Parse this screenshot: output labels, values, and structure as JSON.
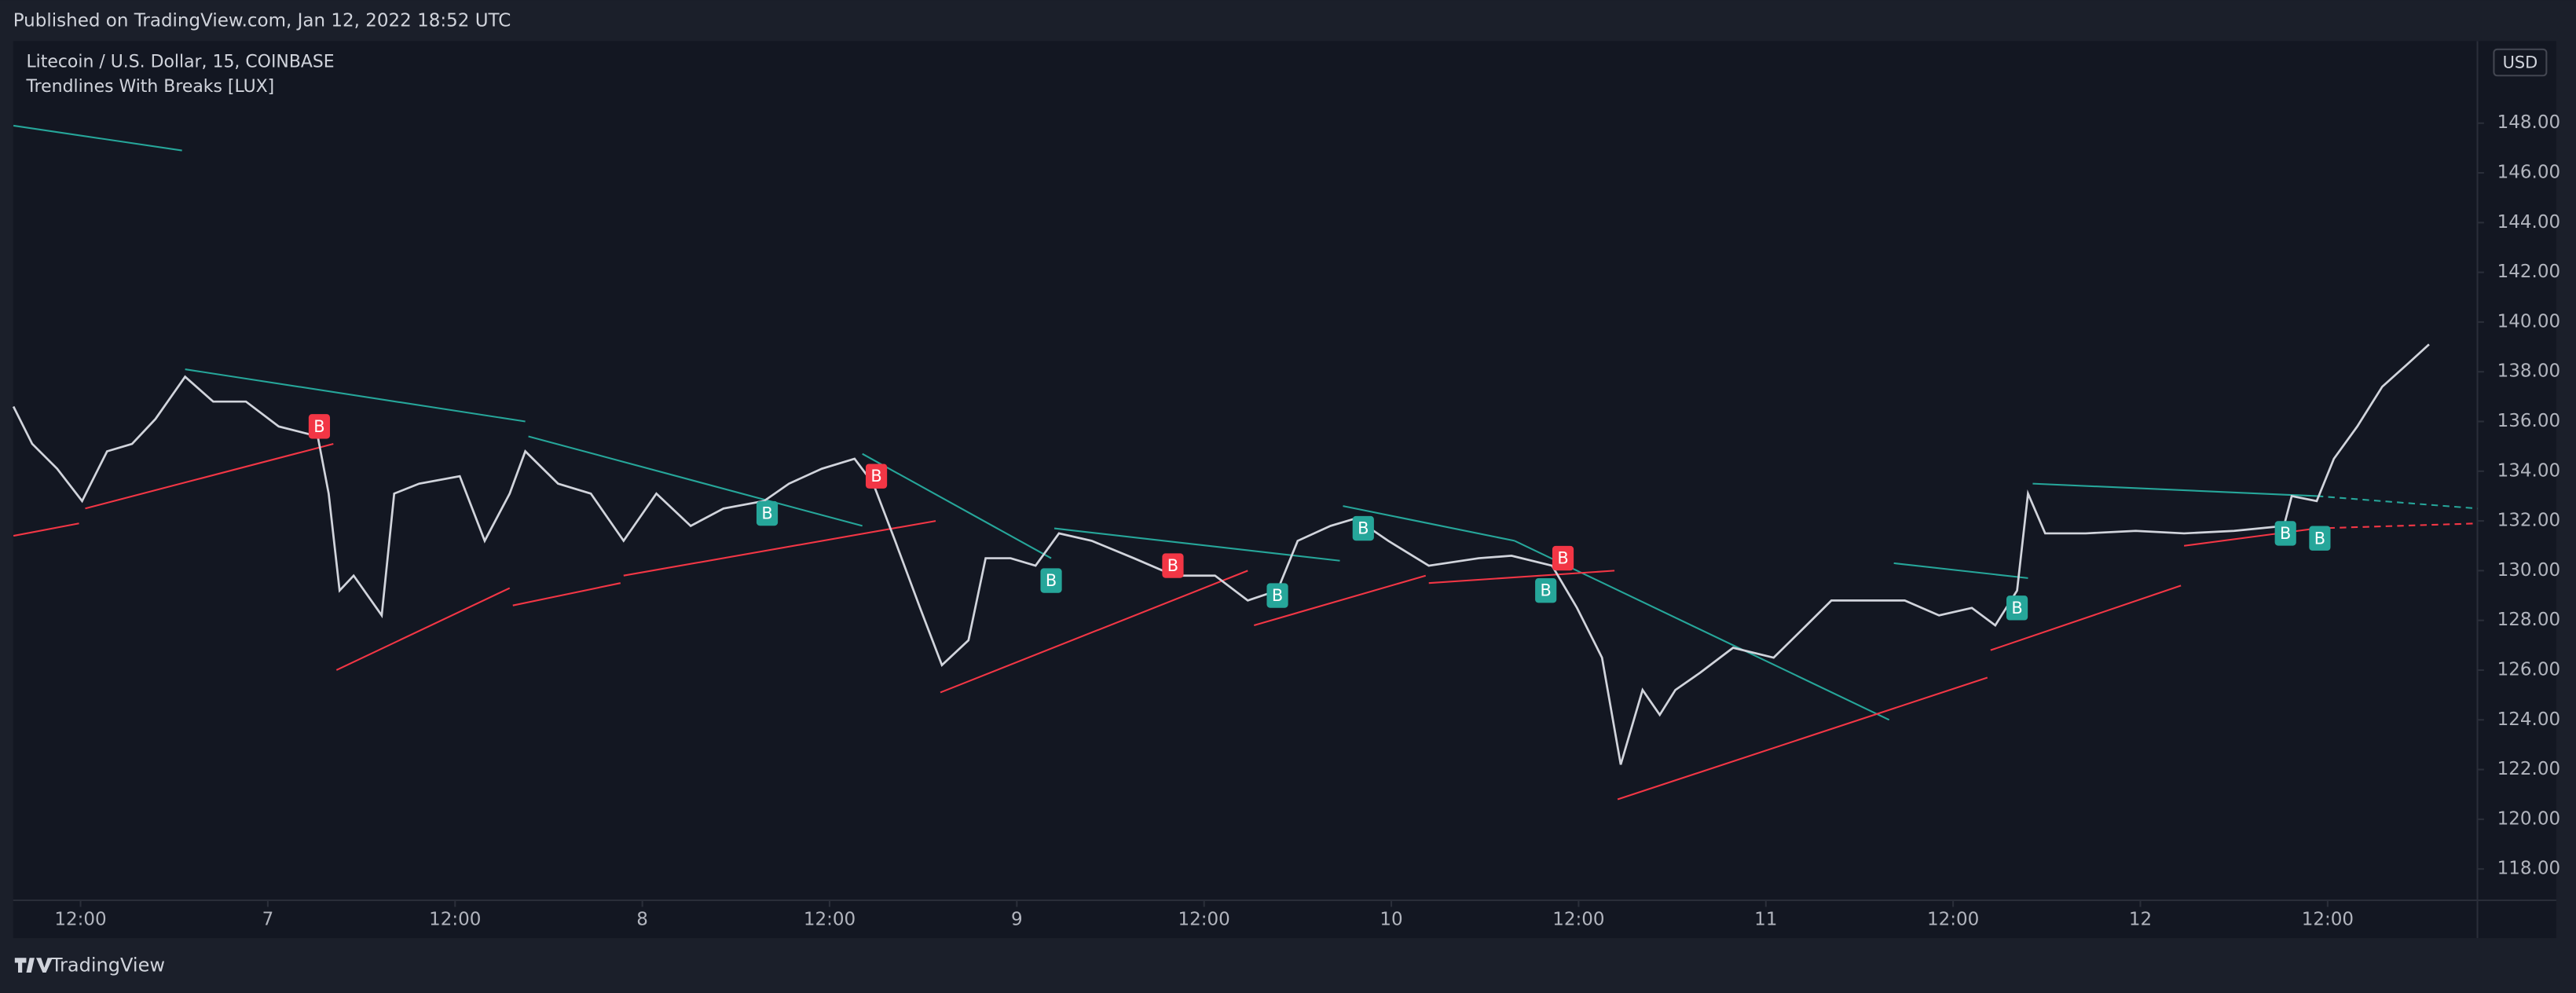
{
  "header": "Published on TradingView.com, Jan 12, 2022 18:52 UTC",
  "footer": "TradingView",
  "chart_data": {
    "type": "line",
    "title": "Litecoin / U.S. Dollar, 15, COINBASE",
    "subtitle": "Trendlines With Breaks [LUX]",
    "currency": "USD",
    "color": "#d1d4dc",
    "xlim": [
      7.68,
      165.6
    ],
    "xticks": [
      {
        "value": 12,
        "label": "12:00"
      },
      {
        "value": 24,
        "label": "7"
      },
      {
        "value": 36,
        "label": "12:00"
      },
      {
        "value": 48,
        "label": "8"
      },
      {
        "value": 60,
        "label": "12:00"
      },
      {
        "value": 72,
        "label": "9"
      },
      {
        "value": 84,
        "label": "12:00"
      },
      {
        "value": 96,
        "label": "10"
      },
      {
        "value": 108,
        "label": "12:00"
      },
      {
        "value": 120,
        "label": "11"
      },
      {
        "value": 132,
        "label": "12:00"
      },
      {
        "value": 144,
        "label": "12"
      },
      {
        "value": 156,
        "label": "12:00"
      }
    ],
    "ylim": [
      116.74,
      151.3
    ],
    "yticks": [
      {
        "value": 118,
        "label": "118.00"
      },
      {
        "value": 120,
        "label": "120.00"
      },
      {
        "value": 122,
        "label": "122.00"
      },
      {
        "value": 124,
        "label": "124.00"
      },
      {
        "value": 126,
        "label": "126.00"
      },
      {
        "value": 128,
        "label": "128.00"
      },
      {
        "value": 130,
        "label": "130.00"
      },
      {
        "value": 132,
        "label": "132.00"
      },
      {
        "value": 134,
        "label": "134.00"
      },
      {
        "value": 136,
        "label": "136.00"
      },
      {
        "value": 138,
        "label": "138.00"
      },
      {
        "value": 140,
        "label": "140.00"
      },
      {
        "value": 142,
        "label": "142.00"
      },
      {
        "value": 144,
        "label": "144.00"
      },
      {
        "value": 146,
        "label": "146.00"
      },
      {
        "value": 148,
        "label": "148.00"
      }
    ],
    "x": [
      7.7,
      8.9,
      10.5,
      12.1,
      13.7,
      15.3,
      16.8,
      18.7,
      20.5,
      22.6,
      24.7,
      27.2,
      27.9,
      28.6,
      29.5,
      31.3,
      32.1,
      33.7,
      36.3,
      37.9,
      39.5,
      40.5,
      42.6,
      44.7,
      46.8,
      48.9,
      51.1,
      53.2,
      55.8,
      57.4,
      59.5,
      61.6,
      62.8,
      64.2,
      65.8,
      67.2,
      68.9,
      70.0,
      71.6,
      73.2,
      74.7,
      76.8,
      79.5,
      82.1,
      84.7,
      86.8,
      88.7,
      90.0,
      92.1,
      93.7,
      95.8,
      98.4,
      101.6,
      103.7,
      106.3,
      107.9,
      109.5,
      110.7,
      112.1,
      113.2,
      114.2,
      115.8,
      117.9,
      120.5,
      122.6,
      124.2,
      126.8,
      128.9,
      131.1,
      133.2,
      134.7,
      136.1,
      136.8,
      137.9,
      140.5,
      143.7,
      146.8,
      150.0,
      153.2,
      153.7,
      155.3,
      156.4,
      157.9,
      159.5,
      161.1,
      162.5
    ],
    "values": [
      136.6,
      135.1,
      134.1,
      132.8,
      134.8,
      135.1,
      136.1,
      137.8,
      136.8,
      136.8,
      135.8,
      135.4,
      133.1,
      129.2,
      129.8,
      128.2,
      133.1,
      133.5,
      133.8,
      131.2,
      133.1,
      134.8,
      133.5,
      133.1,
      131.2,
      133.1,
      131.8,
      132.5,
      132.8,
      133.5,
      134.1,
      134.5,
      133.5,
      131.2,
      128.5,
      126.2,
      127.2,
      130.5,
      130.5,
      130.2,
      131.5,
      131.2,
      130.5,
      129.8,
      129.8,
      128.8,
      129.2,
      131.2,
      131.8,
      132.1,
      131.2,
      130.2,
      130.5,
      130.6,
      130.2,
      128.5,
      126.5,
      122.2,
      125.2,
      124.2,
      125.2,
      125.9,
      126.9,
      126.5,
      127.8,
      128.8,
      128.8,
      128.8,
      128.2,
      128.5,
      127.8,
      129.2,
      133.1,
      131.5,
      131.5,
      131.6,
      131.5,
      131.6,
      131.8,
      133.0,
      132.8,
      134.5,
      135.8,
      137.4,
      138.3,
      139.1
    ],
    "trendlines": [
      {
        "color": "#26a69a",
        "x1": 7.7,
        "y1": 147.9,
        "x2": 18.5,
        "y2": 146.9
      },
      {
        "color": "#26a69a",
        "x1": 18.7,
        "y1": 138.1,
        "x2": 40.5,
        "y2": 136.0
      },
      {
        "color": "#26a69a",
        "x1": 40.7,
        "y1": 135.4,
        "x2": 62.1,
        "y2": 131.8
      },
      {
        "color": "#26a69a",
        "x1": 62.1,
        "y1": 134.7,
        "x2": 74.2,
        "y2": 130.5
      },
      {
        "color": "#26a69a",
        "x1": 74.4,
        "y1": 131.7,
        "x2": 92.7,
        "y2": 130.4
      },
      {
        "color": "#26a69a",
        "x1": 92.9,
        "y1": 132.6,
        "x2": 103.9,
        "y2": 131.2
      },
      {
        "color": "#26a69a",
        "x1": 103.9,
        "y1": 131.2,
        "x2": 127.9,
        "y2": 124.0
      },
      {
        "color": "#26a69a",
        "x1": 128.2,
        "y1": 130.3,
        "x2": 136.8,
        "y2": 129.7
      },
      {
        "color": "#26a69a",
        "x1": 137.1,
        "y1": 133.5,
        "x2": 155.3,
        "y2": 133.0
      },
      {
        "color": "#26a69a",
        "x1": 155.3,
        "y1": 133.0,
        "x2": 165.6,
        "y2": 132.5,
        "dashed": true
      },
      {
        "color": "#f23645",
        "x1": 7.7,
        "y1": 131.4,
        "x2": 11.9,
        "y2": 131.9
      },
      {
        "color": "#f23645",
        "x1": 12.3,
        "y1": 132.5,
        "x2": 28.2,
        "y2": 135.1
      },
      {
        "color": "#f23645",
        "x1": 28.4,
        "y1": 126.0,
        "x2": 39.5,
        "y2": 129.3
      },
      {
        "color": "#f23645",
        "x1": 39.7,
        "y1": 128.6,
        "x2": 46.6,
        "y2": 129.5
      },
      {
        "color": "#f23645",
        "x1": 46.8,
        "y1": 129.8,
        "x2": 66.8,
        "y2": 132.0
      },
      {
        "color": "#f23645",
        "x1": 67.1,
        "y1": 125.1,
        "x2": 86.8,
        "y2": 130.0
      },
      {
        "color": "#f23645",
        "x1": 87.2,
        "y1": 127.8,
        "x2": 98.2,
        "y2": 129.8
      },
      {
        "color": "#f23645",
        "x1": 98.4,
        "y1": 129.5,
        "x2": 110.3,
        "y2": 130.0
      },
      {
        "color": "#f23645",
        "x1": 110.5,
        "y1": 120.8,
        "x2": 134.2,
        "y2": 125.7
      },
      {
        "color": "#f23645",
        "x1": 134.4,
        "y1": 126.8,
        "x2": 146.6,
        "y2": 129.4
      },
      {
        "color": "#f23645",
        "x1": 146.8,
        "y1": 131.0,
        "x2": 155.3,
        "y2": 131.7
      },
      {
        "color": "#f23645",
        "x1": 155.3,
        "y1": 131.7,
        "x2": 165.6,
        "y2": 131.9,
        "dashed": true
      }
    ],
    "annotations": [
      {
        "text": "B",
        "color": "#f23645",
        "x": 27.3,
        "y": 135.8
      },
      {
        "text": "B",
        "color": "#f23645",
        "x": 63.0,
        "y": 133.8
      },
      {
        "text": "B",
        "color": "#f23645",
        "x": 82.0,
        "y": 130.2
      },
      {
        "text": "B",
        "color": "#f23645",
        "x": 107.0,
        "y": 130.5
      },
      {
        "text": "B",
        "color": "#26a69a",
        "x": 56.0,
        "y": 132.3
      },
      {
        "text": "B",
        "color": "#26a69a",
        "x": 74.2,
        "y": 129.6
      },
      {
        "text": "B",
        "color": "#26a69a",
        "x": 88.7,
        "y": 129.0
      },
      {
        "text": "B",
        "color": "#26a69a",
        "x": 94.2,
        "y": 131.7
      },
      {
        "text": "B",
        "color": "#26a69a",
        "x": 105.9,
        "y": 129.2
      },
      {
        "text": "B",
        "color": "#26a69a",
        "x": 136.1,
        "y": 128.5
      },
      {
        "text": "B",
        "color": "#26a69a",
        "x": 153.3,
        "y": 131.5
      },
      {
        "text": "B",
        "color": "#26a69a",
        "x": 155.5,
        "y": 131.3
      }
    ]
  }
}
